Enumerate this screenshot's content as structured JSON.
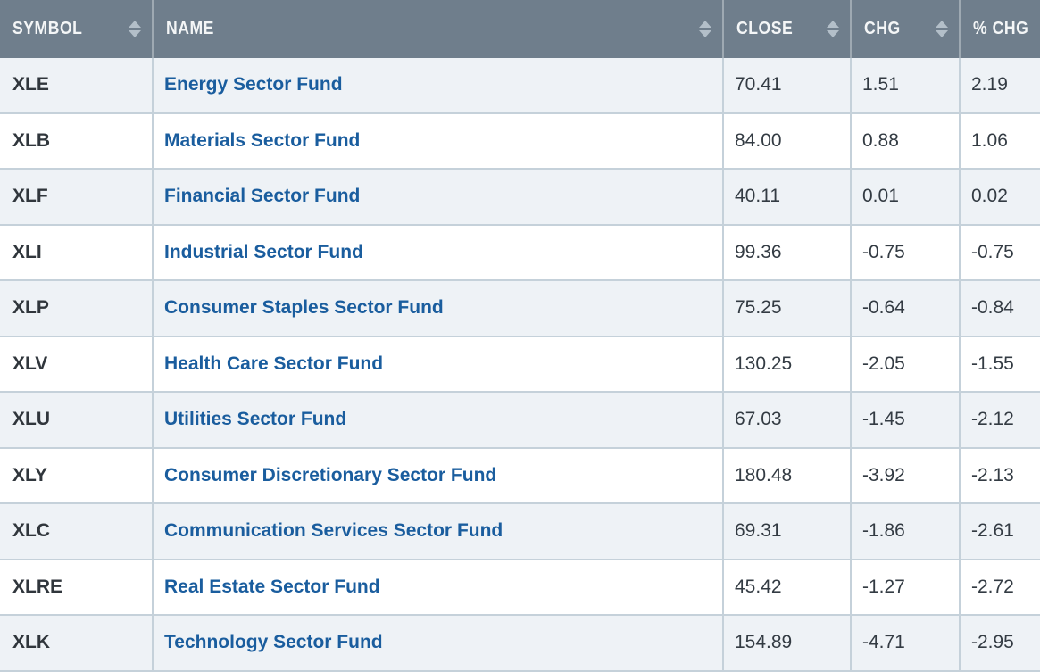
{
  "table": {
    "columns": [
      {
        "label": "SYMBOL",
        "sortable": true
      },
      {
        "label": "NAME",
        "sortable": true
      },
      {
        "label": "CLOSE",
        "sortable": true
      },
      {
        "label": "CHG",
        "sortable": true
      },
      {
        "label": "% CHG",
        "sortable": false
      }
    ],
    "rows": [
      {
        "symbol": "XLE",
        "name": "Energy Sector Fund",
        "close": "70.41",
        "chg": "1.51",
        "pct_chg": "2.19"
      },
      {
        "symbol": "XLB",
        "name": "Materials Sector Fund",
        "close": "84.00",
        "chg": "0.88",
        "pct_chg": "1.06"
      },
      {
        "symbol": "XLF",
        "name": "Financial Sector Fund",
        "close": "40.11",
        "chg": "0.01",
        "pct_chg": "0.02"
      },
      {
        "symbol": "XLI",
        "name": "Industrial Sector Fund",
        "close": "99.36",
        "chg": "-0.75",
        "pct_chg": "-0.75"
      },
      {
        "symbol": "XLP",
        "name": "Consumer Staples Sector Fund",
        "close": "75.25",
        "chg": "-0.64",
        "pct_chg": "-0.84"
      },
      {
        "symbol": "XLV",
        "name": "Health Care Sector Fund",
        "close": "130.25",
        "chg": "-2.05",
        "pct_chg": "-1.55"
      },
      {
        "symbol": "XLU",
        "name": "Utilities Sector Fund",
        "close": "67.03",
        "chg": "-1.45",
        "pct_chg": "-2.12"
      },
      {
        "symbol": "XLY",
        "name": "Consumer Discretionary Sector Fund",
        "close": "180.48",
        "chg": "-3.92",
        "pct_chg": "-2.13"
      },
      {
        "symbol": "XLC",
        "name": "Communication Services Sector Fund",
        "close": "69.31",
        "chg": "-1.86",
        "pct_chg": "-2.61"
      },
      {
        "symbol": "XLRE",
        "name": "Real Estate Sector Fund",
        "close": "45.42",
        "chg": "-1.27",
        "pct_chg": "-2.72"
      },
      {
        "symbol": "XLK",
        "name": "Technology Sector Fund",
        "close": "154.89",
        "chg": "-4.71",
        "pct_chg": "-2.95"
      }
    ]
  },
  "colors": {
    "header_bg": "#6f7e8c",
    "header_text": "#f4f6f7",
    "header_divider": "#9ea9b2",
    "sort_icon": "#b3bfc9",
    "row_alt_bg": "#eef2f6",
    "row_bg": "#ffffff",
    "border": "#c5d1da",
    "link_text": "#1a5d9e",
    "body_text": "#333b43",
    "symbol_text": "#30363c"
  }
}
